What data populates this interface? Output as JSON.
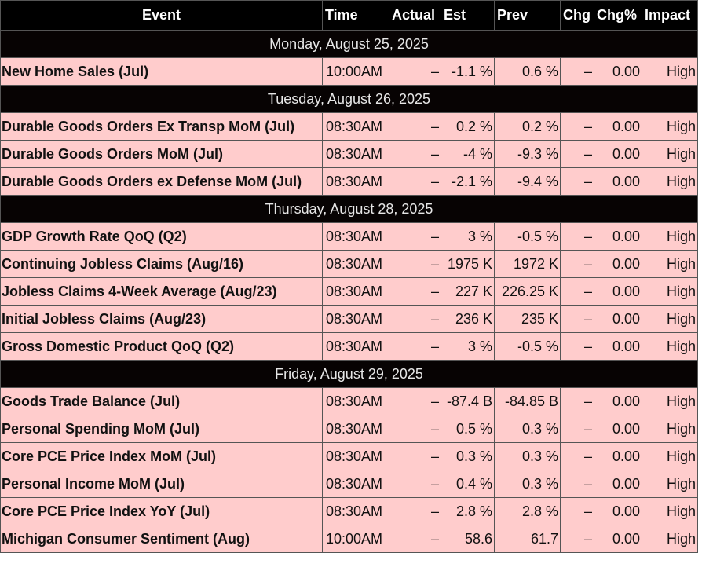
{
  "headers": {
    "event": "Event",
    "time": "Time",
    "actual": "Actual",
    "est": "Est",
    "prev": "Prev",
    "chg": "Chg",
    "chg_pct": "Chg%",
    "impact": "Impact"
  },
  "groups": [
    {
      "date": "Monday, August 25, 2025",
      "rows": [
        {
          "event": "New Home Sales (Jul)",
          "time": "10:00AM",
          "actual": "–",
          "est": "-1.1 %",
          "prev": "0.6 %",
          "chg": "–",
          "chg_pct": "0.00",
          "impact": "High"
        }
      ]
    },
    {
      "date": "Tuesday, August 26, 2025",
      "rows": [
        {
          "event": "Durable Goods Orders Ex Transp MoM (Jul)",
          "time": "08:30AM",
          "actual": "–",
          "est": "0.2 %",
          "prev": "0.2 %",
          "chg": "–",
          "chg_pct": "0.00",
          "impact": "High"
        },
        {
          "event": "Durable Goods Orders MoM (Jul)",
          "time": "08:30AM",
          "actual": "–",
          "est": "-4 %",
          "prev": "-9.3 %",
          "chg": "–",
          "chg_pct": "0.00",
          "impact": "High"
        },
        {
          "event": "Durable Goods Orders ex Defense MoM (Jul)",
          "time": "08:30AM",
          "actual": "–",
          "est": "-2.1 %",
          "prev": "-9.4 %",
          "chg": "–",
          "chg_pct": "0.00",
          "impact": "High"
        }
      ]
    },
    {
      "date": "Thursday, August 28, 2025",
      "rows": [
        {
          "event": "GDP Growth Rate QoQ (Q2)",
          "time": "08:30AM",
          "actual": "–",
          "est": "3 %",
          "prev": "-0.5 %",
          "chg": "–",
          "chg_pct": "0.00",
          "impact": "High"
        },
        {
          "event": "Continuing Jobless Claims (Aug/16)",
          "time": "08:30AM",
          "actual": "–",
          "est": "1975 K",
          "prev": "1972 K",
          "chg": "–",
          "chg_pct": "0.00",
          "impact": "High"
        },
        {
          "event": "Jobless Claims 4-Week Average (Aug/23)",
          "time": "08:30AM",
          "actual": "–",
          "est": "227 K",
          "prev": "226.25 K",
          "chg": "–",
          "chg_pct": "0.00",
          "impact": "High"
        },
        {
          "event": "Initial Jobless Claims (Aug/23)",
          "time": "08:30AM",
          "actual": "–",
          "est": "236 K",
          "prev": "235 K",
          "chg": "–",
          "chg_pct": "0.00",
          "impact": "High"
        },
        {
          "event": "Gross Domestic Product QoQ (Q2)",
          "time": "08:30AM",
          "actual": "–",
          "est": "3 %",
          "prev": "-0.5 %",
          "chg": "–",
          "chg_pct": "0.00",
          "impact": "High"
        }
      ]
    },
    {
      "date": "Friday, August 29, 2025",
      "rows": [
        {
          "event": "Goods Trade Balance (Jul)",
          "time": "08:30AM",
          "actual": "–",
          "est": "-87.4 B",
          "prev": "-84.85 B",
          "chg": "–",
          "chg_pct": "0.00",
          "impact": "High"
        },
        {
          "event": "Personal Spending MoM (Jul)",
          "time": "08:30AM",
          "actual": "–",
          "est": "0.5 %",
          "prev": "0.3 %",
          "chg": "–",
          "chg_pct": "0.00",
          "impact": "High"
        },
        {
          "event": "Core PCE Price Index MoM (Jul)",
          "time": "08:30AM",
          "actual": "–",
          "est": "0.3 %",
          "prev": "0.3 %",
          "chg": "–",
          "chg_pct": "0.00",
          "impact": "High"
        },
        {
          "event": "Personal Income MoM (Jul)",
          "time": "08:30AM",
          "actual": "–",
          "est": "0.4 %",
          "prev": "0.3 %",
          "chg": "–",
          "chg_pct": "0.00",
          "impact": "High"
        },
        {
          "event": "Core PCE Price Index YoY (Jul)",
          "time": "08:30AM",
          "actual": "–",
          "est": "2.8 %",
          "prev": "2.8 %",
          "chg": "–",
          "chg_pct": "0.00",
          "impact": "High"
        },
        {
          "event": "Michigan Consumer Sentiment (Aug)",
          "time": "10:00AM",
          "actual": "–",
          "est": "58.6",
          "prev": "61.7",
          "chg": "–",
          "chg_pct": "0.00",
          "impact": "High"
        }
      ]
    }
  ]
}
